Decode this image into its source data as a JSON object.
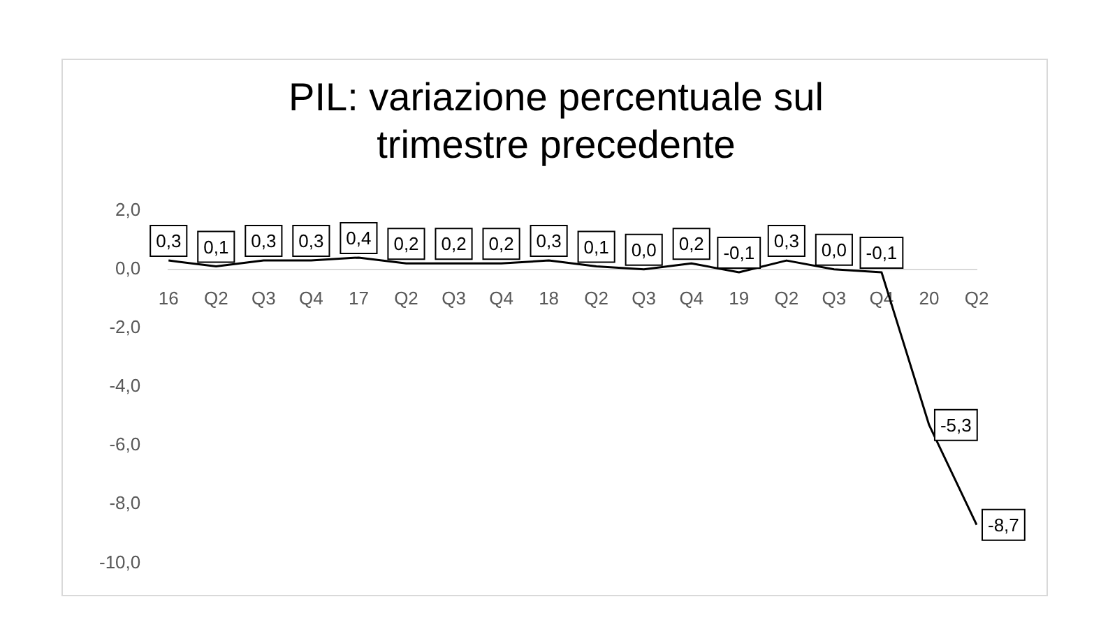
{
  "chart_data": {
    "type": "line",
    "title": "PIL: variazione percentuale sul trimestre precedente",
    "categories": [
      "16",
      "Q2",
      "Q3",
      "Q4",
      "17",
      "Q2",
      "Q3",
      "Q4",
      "18",
      "Q2",
      "Q3",
      "Q4",
      "19",
      "Q2",
      "Q3",
      "Q4",
      "20",
      "Q2"
    ],
    "series": [
      {
        "color": "#000000",
        "values": [
          0.3,
          0.1,
          0.3,
          0.3,
          0.4,
          0.2,
          0.2,
          0.2,
          0.3,
          0.1,
          0.0,
          0.2,
          -0.1,
          0.3,
          0.0,
          -0.1,
          -5.3,
          -8.7
        ],
        "value_labels": [
          "0,3",
          "0,1",
          "0,3",
          "0,3",
          "0,4",
          "0,2",
          "0,2",
          "0,2",
          "0,3",
          "0,1",
          "0,0",
          "0,2",
          "-0,1",
          "0,3",
          "0,0",
          "-0,1",
          "-5,3",
          "-8,7"
        ]
      }
    ],
    "ylim": [
      -10,
      2
    ],
    "yticks": [
      {
        "value": -10,
        "label": "-10,0"
      },
      {
        "value": -8,
        "label": "-8,0"
      },
      {
        "value": -6,
        "label": "-6,0"
      },
      {
        "value": -4,
        "label": "-4,0"
      },
      {
        "value": -2,
        "label": "-2,0"
      },
      {
        "value": 0,
        "label": "0,0"
      },
      {
        "value": 2,
        "label": "2,0"
      }
    ],
    "grid": false,
    "legend": false,
    "marker": "none",
    "line_style": "solid"
  }
}
